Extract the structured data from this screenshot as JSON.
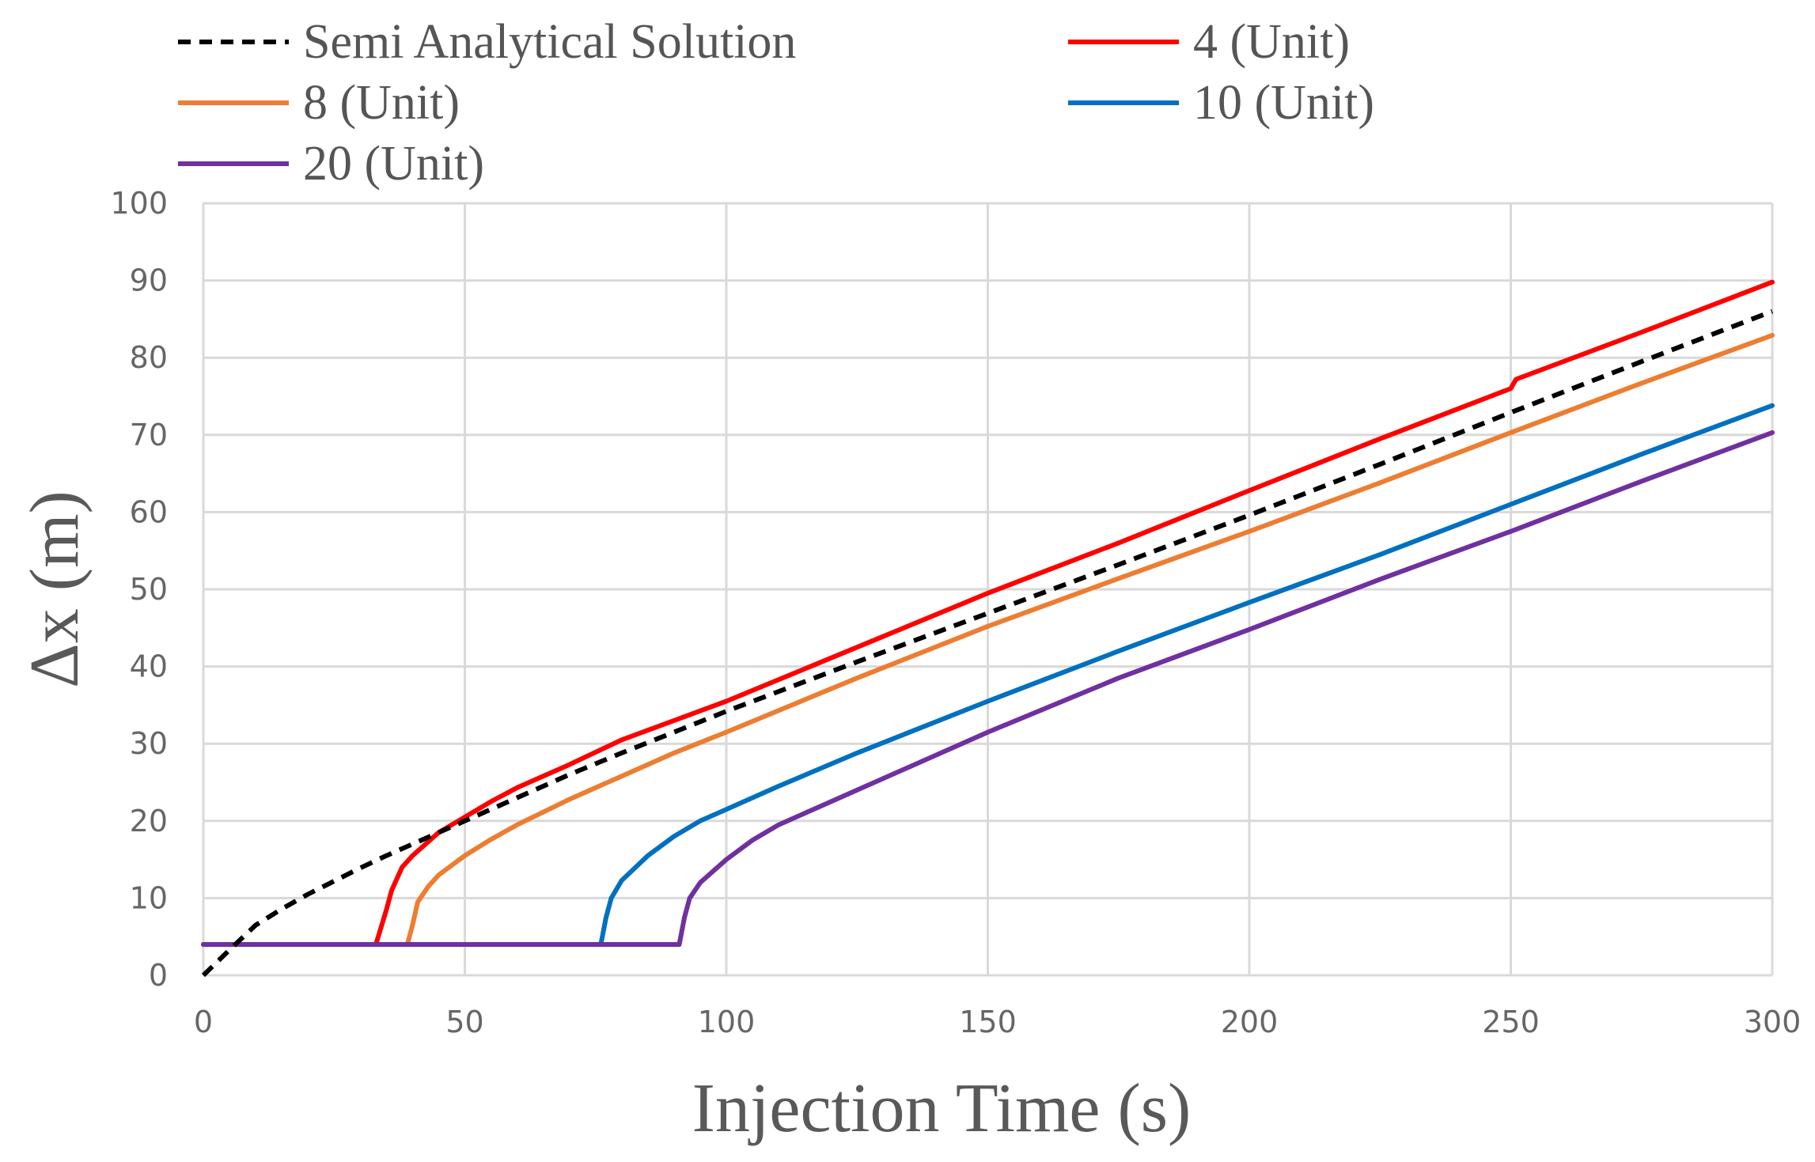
{
  "chart_data": {
    "type": "line",
    "title": "",
    "xlabel": "Injection Time (s)",
    "ylabel": "Δx (m)",
    "xlim": [
      0,
      300
    ],
    "ylim": [
      0,
      100
    ],
    "x_ticks": [
      0,
      50,
      100,
      150,
      200,
      250,
      300
    ],
    "y_ticks": [
      0,
      10,
      20,
      30,
      40,
      50,
      60,
      70,
      80,
      90,
      100
    ],
    "grid": true,
    "legend_position": "top",
    "series": [
      {
        "name": "Semi Analytical Solution",
        "color": "#000000",
        "style": "dashed",
        "x": [
          0,
          5,
          10,
          15,
          20,
          25,
          30,
          35,
          40,
          45,
          50,
          60,
          70,
          80,
          90,
          100,
          125,
          150,
          175,
          200,
          225,
          250,
          275,
          300
        ],
        "y": [
          0,
          3.3,
          6.5,
          8.6,
          10.5,
          12.2,
          13.9,
          15.5,
          17.0,
          18.5,
          20.0,
          23.0,
          26.0,
          28.8,
          31.5,
          34.2,
          40.6,
          46.9,
          53.2,
          59.6,
          66.2,
          72.9,
          79.5,
          86.0
        ]
      },
      {
        "name": "4 (Unit)",
        "color": "#ff0000",
        "style": "solid",
        "x": [
          0,
          33,
          35,
          36,
          38,
          40,
          45,
          50,
          55,
          60,
          70,
          80,
          90,
          100,
          125,
          150,
          175,
          200,
          225,
          250,
          251,
          275,
          300
        ],
        "y": [
          4,
          4,
          8.5,
          11,
          14,
          15.5,
          18.5,
          20.5,
          22.5,
          24.3,
          27.3,
          30.5,
          33.0,
          35.5,
          42.5,
          49.5,
          56.0,
          62.8,
          69.5,
          76.0,
          77.2,
          83.3,
          89.8
        ]
      },
      {
        "name": "8 (Unit)",
        "color": "#ed7d31",
        "style": "solid",
        "x": [
          0,
          39,
          40,
          41,
          43,
          45,
          50,
          55,
          60,
          70,
          80,
          90,
          100,
          125,
          150,
          175,
          200,
          225,
          250,
          275,
          300
        ],
        "y": [
          4,
          4,
          6.5,
          9.5,
          11.5,
          13.0,
          15.5,
          17.6,
          19.5,
          22.8,
          25.8,
          28.8,
          31.5,
          38.5,
          45.2,
          51.4,
          57.5,
          63.8,
          70.3,
          76.7,
          82.9
        ]
      },
      {
        "name": "10 (Unit)",
        "color": "#0070c0",
        "style": "solid",
        "x": [
          0,
          76,
          77,
          78,
          80,
          85,
          90,
          95,
          100,
          110,
          125,
          150,
          175,
          200,
          225,
          250,
          275,
          300
        ],
        "y": [
          4,
          4,
          7.5,
          10.0,
          12.3,
          15.5,
          18.0,
          20.0,
          21.5,
          24.5,
          28.8,
          35.5,
          42.0,
          48.3,
          54.5,
          61.0,
          67.5,
          73.8
        ]
      },
      {
        "name": "20 (Unit)",
        "color": "#7030a0",
        "style": "solid",
        "x": [
          0,
          91,
          92,
          93,
          95,
          100,
          105,
          110,
          125,
          150,
          175,
          200,
          225,
          250,
          275,
          300
        ],
        "y": [
          4,
          4,
          7.5,
          10.0,
          12.0,
          15.0,
          17.5,
          19.5,
          24.0,
          31.5,
          38.5,
          44.8,
          51.3,
          57.5,
          64.0,
          70.3
        ]
      }
    ]
  }
}
